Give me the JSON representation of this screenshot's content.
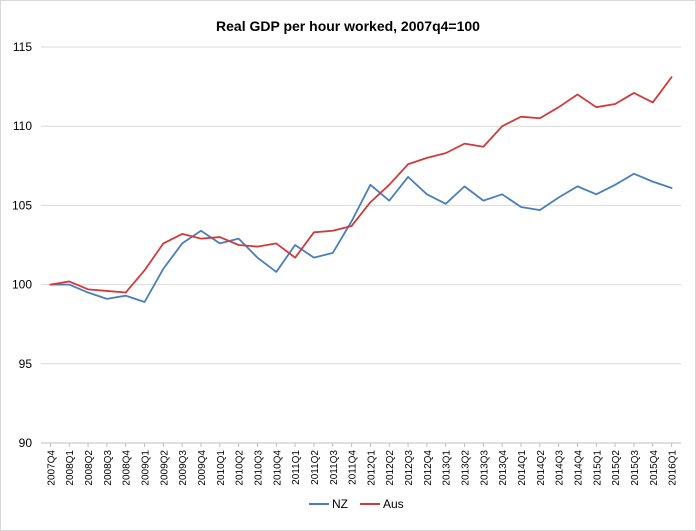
{
  "chart_data": {
    "type": "line",
    "title": "Real GDP per hour worked, 2007q4=100",
    "xlabel": "",
    "ylabel": "",
    "ylim": [
      90,
      115
    ],
    "yticks": [
      90,
      95,
      100,
      105,
      110,
      115
    ],
    "grid": true,
    "legend_position": "bottom",
    "categories": [
      "2007Q4",
      "2008Q1",
      "2008Q2",
      "2008Q3",
      "2008Q4",
      "2009Q1",
      "2009Q2",
      "2009Q3",
      "2009Q4",
      "2010Q1",
      "2010Q2",
      "2010Q3",
      "2010Q4",
      "2011Q1",
      "2011Q2",
      "2011Q3",
      "2011Q4",
      "2012Q1",
      "2012Q2",
      "2012Q3",
      "2012Q4",
      "2013Q1",
      "2013Q2",
      "2013Q3",
      "2013Q4",
      "2014Q1",
      "2014Q2",
      "2014Q3",
      "2014Q4",
      "2015Q1",
      "2015Q2",
      "2015Q3",
      "2015Q4",
      "2016Q1"
    ],
    "series": [
      {
        "name": "NZ",
        "color": "#4a7ebb",
        "values": [
          100.0,
          100.0,
          99.5,
          99.1,
          99.3,
          98.9,
          101.0,
          102.6,
          103.4,
          102.6,
          102.9,
          101.7,
          100.8,
          102.5,
          101.7,
          102.0,
          104.0,
          106.3,
          105.3,
          106.8,
          105.7,
          105.1,
          106.2,
          105.3,
          105.7,
          104.9,
          104.7,
          105.5,
          106.2,
          105.7,
          106.3,
          107.0,
          106.5,
          106.1
        ]
      },
      {
        "name": "Aus",
        "color": "#d13a3a",
        "values": [
          100.0,
          100.2,
          99.7,
          99.6,
          99.5,
          100.9,
          102.6,
          103.2,
          102.9,
          103.0,
          102.5,
          102.4,
          102.6,
          101.7,
          103.3,
          103.4,
          103.7,
          105.2,
          106.3,
          107.6,
          108.0,
          108.3,
          108.9,
          108.7,
          110.0,
          110.6,
          110.5,
          111.2,
          112.0,
          111.2,
          111.4,
          112.1,
          111.5,
          113.1
        ]
      }
    ]
  }
}
